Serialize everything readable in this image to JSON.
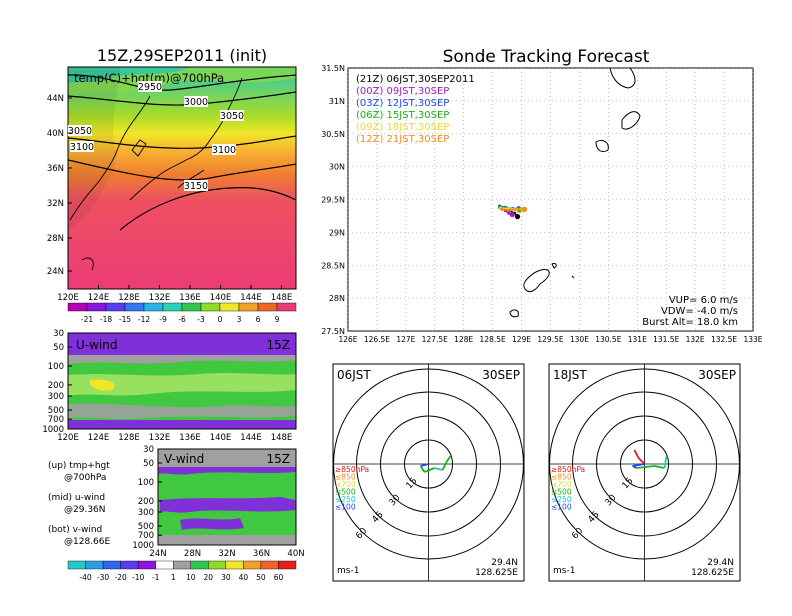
{
  "left": {
    "title": "15Z,29SEP2011 (init)",
    "map": {
      "label": "temp(C)+hgt(m)@700hPa",
      "lat_ticks": [
        "44N",
        "40N",
        "36N",
        "32N",
        "28N",
        "24N"
      ],
      "lon_ticks": [
        "120E",
        "124E",
        "128E",
        "132E",
        "136E",
        "140E",
        "144E",
        "148E"
      ],
      "contour_labels": [
        "2950",
        "3000",
        "3050",
        "3050",
        "3100",
        "3100",
        "3150"
      ]
    },
    "temp_colorbar": [
      "-21",
      "-18",
      "-15",
      "-12",
      "-9",
      "-6",
      "-3",
      "0",
      "3",
      "6",
      "9"
    ],
    "u_panel": {
      "name": "U-wind",
      "time": "15Z",
      "p_ticks": [
        "30",
        "50",
        "100",
        "200",
        "300",
        "500",
        "700",
        "1000"
      ],
      "x_ticks": [
        "120E",
        "124E",
        "128E",
        "132E",
        "136E",
        "140E",
        "144E",
        "148E"
      ]
    },
    "v_panel": {
      "name": "V-wind",
      "time": "15Z",
      "p_ticks": [
        "30",
        "50",
        "100",
        "200",
        "300",
        "500",
        "700",
        "1000"
      ],
      "x_ticks": [
        "24N",
        "28N",
        "32N",
        "36N",
        "40N"
      ]
    },
    "notes": [
      {
        "head": "(up) tmp+hgt",
        "sub": "@700hPa"
      },
      {
        "head": "(mid) u-wind",
        "sub": "@29.36N"
      },
      {
        "head": "(bot) v-wind",
        "sub": "@128.66E"
      }
    ],
    "wind_colorbar": [
      "-40",
      "-30",
      "-20",
      "-10",
      "-1",
      "1",
      "10",
      "20",
      "30",
      "40",
      "50",
      "60"
    ]
  },
  "right": {
    "title": "Sonde Tracking Forecast",
    "legend": [
      {
        "label": "(21Z)  06JST,30SEP2011",
        "color": "#000000"
      },
      {
        "label": "(00Z)  09JST,30SEP",
        "color": "#a020c0"
      },
      {
        "label": "(03Z)  12JST,30SEP",
        "color": "#1e46ff"
      },
      {
        "label": "(06Z)  15JST,30SEP",
        "color": "#14b414"
      },
      {
        "label": "(09Z)  18JST,30SEP",
        "color": "#e6dc32"
      },
      {
        "label": "(12Z)  21JST,30SEP",
        "color": "#f08c1e"
      }
    ],
    "lat_ticks": [
      "31.5N",
      "31N",
      "30.5N",
      "30N",
      "29.5N",
      "29N",
      "28.5N",
      "28N",
      "27.5N"
    ],
    "lon_ticks": [
      "126E",
      "126.5E",
      "127E",
      "127.5E",
      "128E",
      "128.5E",
      "129E",
      "129.5E",
      "130E",
      "130.5E",
      "131E",
      "131.5E",
      "132E",
      "132.5E",
      "133E"
    ],
    "params": [
      "VUP=  6.0  m/s",
      "VDW= -4.0  m/s",
      "Burst Alt=  18.0  km"
    ]
  },
  "hodographs": [
    {
      "time": "06JST",
      "date": "30SEP",
      "lat": "29.4N",
      "lon": "128.625E",
      "unit": "ms-1"
    },
    {
      "time": "18JST",
      "date": "30SEP",
      "lat": "29.4N",
      "lon": "128.625E",
      "unit": "ms-1"
    }
  ],
  "hodo_rings": [
    "15",
    "30",
    "45",
    "60"
  ],
  "hodo_levels": [
    {
      "label": "≥850hPa",
      "color": "#e01818"
    },
    {
      "label": "≤850",
      "color": "#f08c1e"
    },
    {
      "label": "≤700",
      "color": "#e6dc32"
    },
    {
      "label": "≤500",
      "color": "#14b414"
    },
    {
      "label": "≤250",
      "color": "#1ec8c8"
    },
    {
      "label": "≤100",
      "color": "#1e46ff"
    }
  ],
  "chart_data": [
    {
      "type": "heatmap",
      "title": "15Z,29SEP2011 (init)",
      "subtitle": "temp(C)+hgt(m)@700hPa",
      "x_range": [
        120,
        150
      ],
      "y_range": [
        22,
        48
      ],
      "color_levels": [
        -21,
        -18,
        -15,
        -12,
        -9,
        -6,
        -3,
        0,
        3,
        6,
        9
      ],
      "contours": [
        2950,
        3000,
        3050,
        3100,
        3150
      ]
    },
    {
      "type": "heatmap",
      "title": "U-wind",
      "x_range": [
        120,
        150
      ],
      "y_range": [
        1000,
        30
      ]
    },
    {
      "type": "heatmap",
      "title": "V-wind",
      "x_range": [
        24,
        40
      ],
      "y_range": [
        1000,
        30
      ],
      "color_levels": [
        -40,
        -30,
        -20,
        -10,
        -1,
        1,
        10,
        20,
        30,
        40,
        50,
        60
      ]
    },
    {
      "type": "line",
      "title": "Sonde Tracking Forecast",
      "x_range": [
        126,
        133
      ],
      "y_range": [
        27.5,
        31.5
      ],
      "series": [
        {
          "name": "(21Z)  06JST,30SEP2011",
          "color": "#000000",
          "points": [
            [
              128.7,
              29.36
            ],
            [
              128.8,
              29.33
            ],
            [
              128.88,
              29.29
            ],
            [
              128.93,
              29.24
            ]
          ]
        },
        {
          "name": "(00Z)  09JST,30SEP",
          "color": "#a020c0",
          "points": [
            [
              128.66,
              29.37
            ],
            [
              128.72,
              29.33
            ],
            [
              128.78,
              29.29
            ],
            [
              128.84,
              29.27
            ]
          ]
        },
        {
          "name": "(03Z)  12JST,30SEP",
          "color": "#1e46ff",
          "points": [
            [
              128.62,
              29.4
            ],
            [
              128.72,
              29.38
            ],
            [
              128.85,
              29.36
            ],
            [
              128.95,
              29.36
            ]
          ]
        },
        {
          "name": "(06Z)  15JST,30SEP",
          "color": "#14b414",
          "points": [
            [
              128.62,
              29.38
            ],
            [
              128.74,
              29.37
            ],
            [
              128.88,
              29.35
            ],
            [
              128.96,
              29.34
            ]
          ]
        },
        {
          "name": "(09Z)  18JST,30SEP",
          "color": "#e6dc32",
          "points": [
            [
              128.64,
              29.37
            ],
            [
              128.78,
              29.36
            ],
            [
              128.92,
              29.35
            ],
            [
              129.02,
              29.35
            ]
          ]
        },
        {
          "name": "(12Z)  21JST,30SEP",
          "color": "#f08c1e",
          "points": [
            [
              128.66,
              29.35
            ],
            [
              128.8,
              29.34
            ],
            [
              128.94,
              29.35
            ],
            [
              129.05,
              29.35
            ]
          ]
        }
      ]
    }
  ]
}
